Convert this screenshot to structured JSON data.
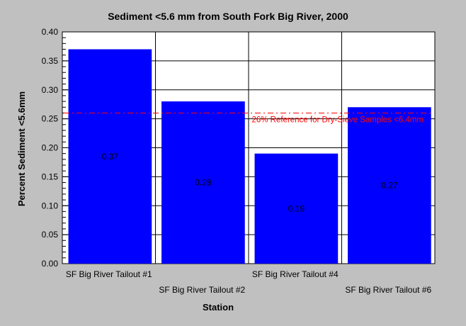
{
  "chart_data": {
    "type": "bar",
    "title": "Sediment <5.6 mm from South Fork Big River,  2000",
    "xlabel": "Station",
    "ylabel": "Percent Sediment <5.6mm",
    "ylim": [
      0,
      0.4
    ],
    "yticks": [
      "0.00",
      "0.05",
      "0.10",
      "0.15",
      "0.20",
      "0.25",
      "0.30",
      "0.35",
      "0.40"
    ],
    "categories": [
      "SF Big River Tailout #1",
      "SF Big River Tailout #2",
      "SF Big River Tailout #4",
      "SF Big River Tailout #6"
    ],
    "values": [
      0.37,
      0.28,
      0.19,
      0.27
    ],
    "data_labels": [
      "0.37",
      "0.28",
      "0.19",
      "0.27"
    ],
    "reference_line": {
      "value": 0.26,
      "label": "26% Reference for Dry-Sieve Samples <6.4mm",
      "color": "#ff0000"
    },
    "bar_color": "#0000ff",
    "plot_background": "#ffffff",
    "grid": true,
    "legend": "none"
  }
}
